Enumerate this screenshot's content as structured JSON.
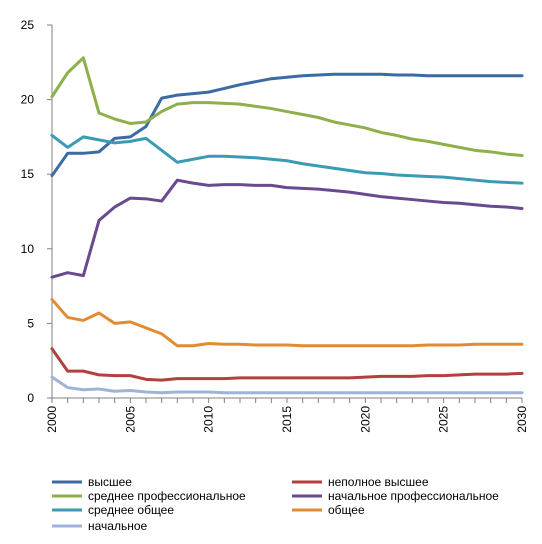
{
  "chart_data": {
    "type": "line",
    "title": "",
    "xlabel": "",
    "ylabel": "",
    "xlim": [
      2000,
      2030
    ],
    "ylim": [
      0,
      25
    ],
    "yticks": [
      0,
      5,
      10,
      15,
      20,
      25
    ],
    "xticks": [
      2000,
      2005,
      2010,
      2015,
      2020,
      2025,
      2030
    ],
    "grid": false,
    "legend_position": "bottom",
    "x": [
      2000,
      2001,
      2002,
      2003,
      2004,
      2005,
      2006,
      2007,
      2008,
      2009,
      2010,
      2011,
      2012,
      2013,
      2014,
      2015,
      2016,
      2017,
      2018,
      2019,
      2020,
      2021,
      2022,
      2023,
      2024,
      2025,
      2026,
      2027,
      2028,
      2029,
      2030
    ],
    "series": [
      {
        "name": "высшее",
        "color": "#3e6aa3",
        "values": [
          14.9,
          16.4,
          16.4,
          16.5,
          17.4,
          17.5,
          18.2,
          20.1,
          20.3,
          20.4,
          20.5,
          20.75,
          21.0,
          21.2,
          21.4,
          21.5,
          21.6,
          21.65,
          21.7,
          21.7,
          21.7,
          21.7,
          21.65,
          21.65,
          21.6,
          21.6,
          21.6,
          21.6,
          21.6,
          21.6,
          21.6
        ]
      },
      {
        "name": "неполное высшее",
        "color": "#b0413e",
        "values": [
          3.3,
          1.8,
          1.8,
          1.55,
          1.5,
          1.5,
          1.25,
          1.2,
          1.3,
          1.3,
          1.3,
          1.3,
          1.35,
          1.35,
          1.35,
          1.35,
          1.35,
          1.35,
          1.35,
          1.35,
          1.4,
          1.45,
          1.45,
          1.45,
          1.5,
          1.5,
          1.55,
          1.6,
          1.6,
          1.6,
          1.65
        ]
      },
      {
        "name": "среднее профессиональное",
        "color": "#8db04b",
        "values": [
          20.2,
          21.8,
          22.8,
          19.1,
          18.7,
          18.4,
          18.5,
          19.2,
          19.7,
          19.8,
          19.8,
          19.75,
          19.7,
          19.55,
          19.4,
          19.2,
          19.0,
          18.8,
          18.5,
          18.3,
          18.1,
          17.8,
          17.6,
          17.35,
          17.2,
          17.0,
          16.8,
          16.6,
          16.5,
          16.35,
          16.25
        ]
      },
      {
        "name": "начальное профессиональное",
        "color": "#6a4a8f",
        "values": [
          8.1,
          8.4,
          8.2,
          11.9,
          12.8,
          13.4,
          13.35,
          13.2,
          14.6,
          14.4,
          14.25,
          14.3,
          14.3,
          14.25,
          14.25,
          14.1,
          14.05,
          14.0,
          13.9,
          13.8,
          13.65,
          13.5,
          13.4,
          13.3,
          13.2,
          13.1,
          13.05,
          12.95,
          12.85,
          12.8,
          12.7
        ]
      },
      {
        "name": "среднее общее",
        "color": "#3b9bb5",
        "values": [
          17.6,
          16.8,
          17.5,
          17.3,
          17.1,
          17.2,
          17.4,
          16.6,
          15.8,
          16.0,
          16.2,
          16.2,
          16.15,
          16.1,
          16.0,
          15.9,
          15.7,
          15.55,
          15.4,
          15.25,
          15.1,
          15.05,
          14.95,
          14.9,
          14.85,
          14.8,
          14.7,
          14.6,
          14.5,
          14.45,
          14.4
        ]
      },
      {
        "name": "общее",
        "color": "#e38b32",
        "values": [
          6.6,
          5.4,
          5.2,
          5.7,
          5.0,
          5.1,
          4.7,
          4.3,
          3.5,
          3.5,
          3.65,
          3.6,
          3.6,
          3.55,
          3.55,
          3.55,
          3.5,
          3.5,
          3.5,
          3.5,
          3.5,
          3.5,
          3.5,
          3.5,
          3.55,
          3.55,
          3.55,
          3.6,
          3.6,
          3.6,
          3.6
        ]
      },
      {
        "name": "начальное",
        "color": "#9eb3d7",
        "values": [
          1.4,
          0.7,
          0.55,
          0.6,
          0.45,
          0.5,
          0.4,
          0.35,
          0.4,
          0.4,
          0.4,
          0.35,
          0.35,
          0.35,
          0.35,
          0.35,
          0.35,
          0.35,
          0.35,
          0.35,
          0.35,
          0.35,
          0.35,
          0.35,
          0.35,
          0.35,
          0.35,
          0.35,
          0.35,
          0.35,
          0.35
        ]
      }
    ]
  }
}
